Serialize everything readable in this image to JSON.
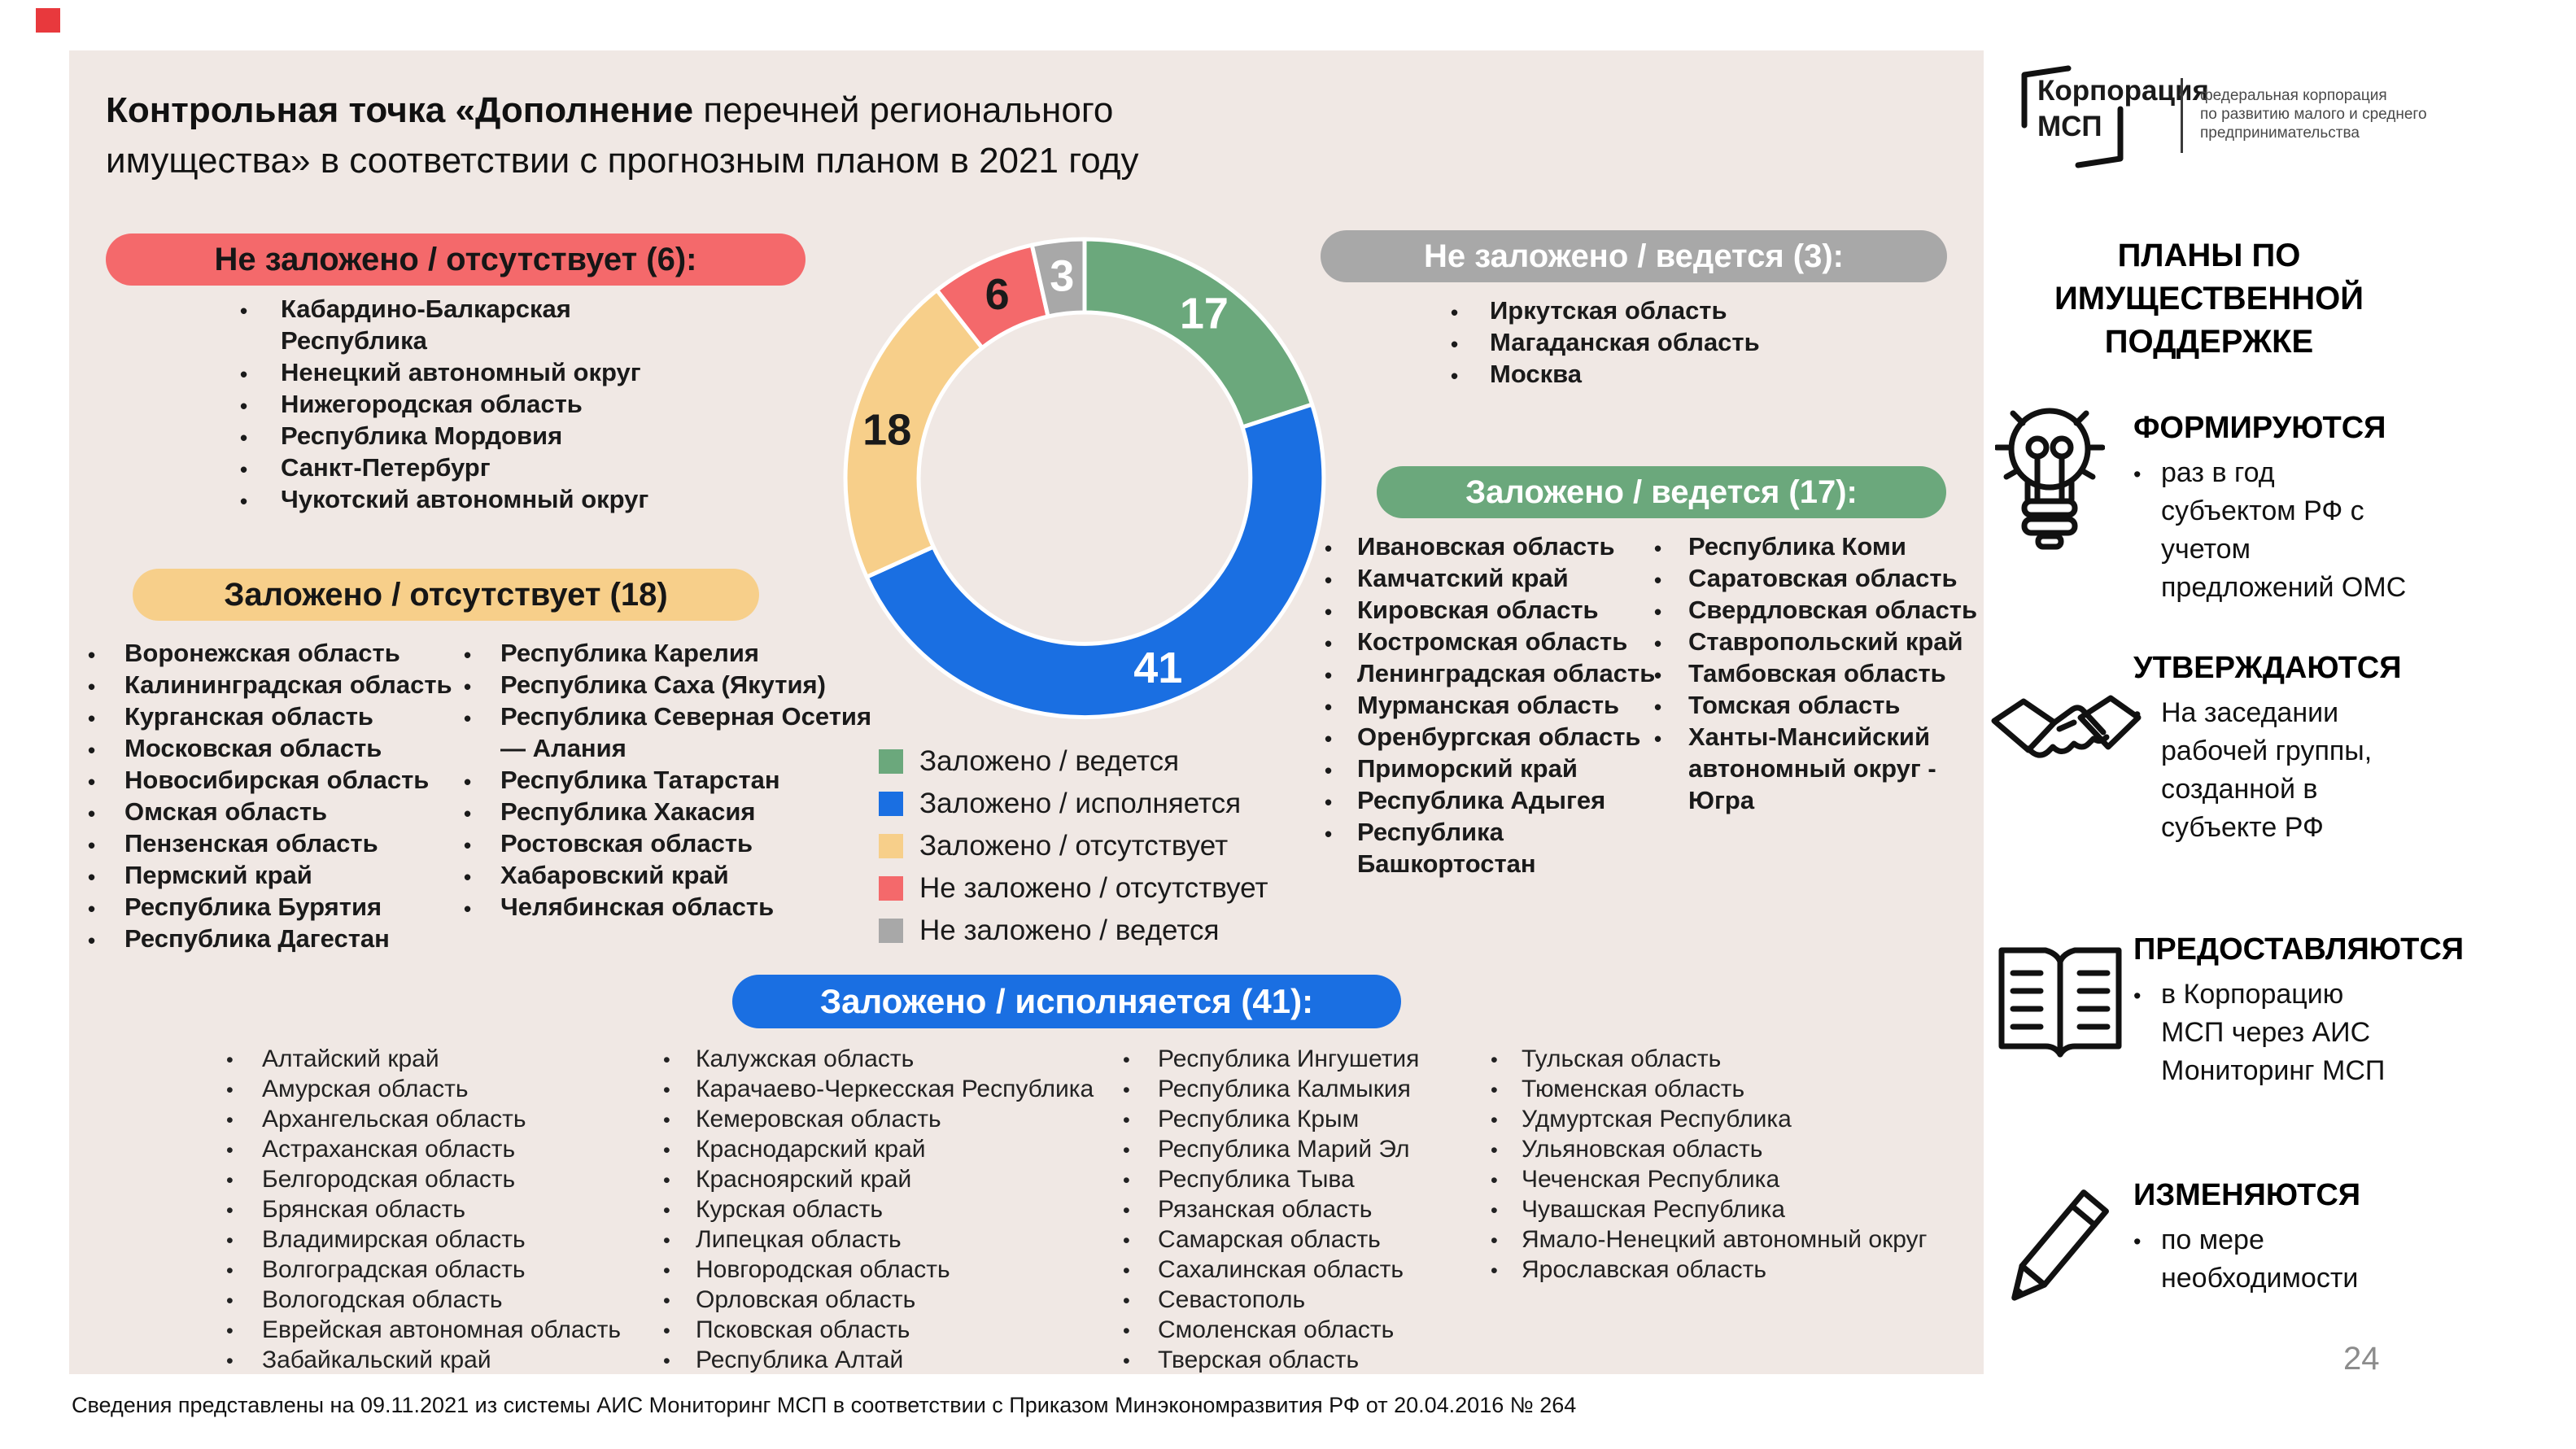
{
  "slide": {
    "title_bold": "Контрольная точка «Дополнение",
    "title_rest": " перечней регионального имущества» в соответствии с прогнозным планом в 2021 году",
    "footer": "Сведения представлены на 09.11.2021 из системы АИС Мониторинг МСП в соответствии с Приказом Минэкономразвития РФ от 20.04.2016 № 264",
    "page_number": "24"
  },
  "groups": {
    "not_planned_absent": {
      "label": "Не заложено / отсутствует (6):",
      "color": "#f4696b",
      "items": [
        "Кабардино-Балкарская Республика",
        "Ненецкий автономный округ",
        "Нижегородская область",
        "Республика Мордовия",
        "Санкт-Петербург",
        "Чукотский автономный округ"
      ]
    },
    "planned_absent": {
      "label": "Заложено / отсутствует (18)",
      "color": "#f7cf8a",
      "col1": [
        "Воронежская область",
        "Калининградская область",
        "Курганская область",
        "Московская область",
        "Новосибирская область",
        "Омская область",
        "Пензенская область",
        "Пермский край",
        "Республика Бурятия",
        "Республика Дагестан"
      ],
      "col2": [
        "Республика Карелия",
        "Республика Саха (Якутия)",
        "Республика Северная Осетия — Алания",
        "Республика Татарстан",
        "Республика Хакасия",
        "Ростовская область",
        "Хабаровский край",
        "Челябинская область"
      ]
    },
    "not_planned_ongoing": {
      "label": "Не заложено / ведется (3):",
      "color": "#a8a8a8",
      "items": [
        "Иркутская область",
        "Магаданская область",
        "Москва"
      ]
    },
    "planned_ongoing": {
      "label": "Заложено / ведется (17):",
      "color": "#6ba87c",
      "col1": [
        "Ивановская область",
        "Камчатский край",
        "Кировская область",
        "Костромская область",
        "Ленинградская область",
        "Мурманская область",
        "Оренбургская область",
        "Приморский край",
        "Республика Адыгея",
        "Республика Башкортостан"
      ],
      "col2": [
        "Республика Коми",
        "Саратовская область",
        "Свердловская область",
        "Ставропольский край",
        "Тамбовская область",
        "Томская область",
        "Ханты-Мансийский автономный округ - Югра"
      ]
    },
    "planned_executing": {
      "label": "Заложено / исполняется (41):",
      "color": "#1a6fe2",
      "col1": [
        "Алтайский край",
        "Амурская область",
        "Архангельская область",
        "Астраханская область",
        "Белгородская область",
        "Брянская область",
        "Владимирская область",
        "Волгоградская область",
        "Вологодская область",
        "Еврейская автономная область",
        "Забайкальский край"
      ],
      "col2": [
        "Калужская область",
        "Карачаево-Черкесская Республика",
        "Кемеровская область",
        "Краснодарский край",
        "Красноярский край",
        "Курская область",
        "Липецкая область",
        "Новгородская область",
        "Орловская область",
        "Псковская область",
        "Республика Алтай"
      ],
      "col3": [
        "Республика Ингушетия",
        "Республика Калмыкия",
        "Республика Крым",
        "Республика Марий Эл",
        "Республика Тыва",
        "Рязанская область",
        "Самарская область",
        "Сахалинская область",
        "Севастополь",
        "Смоленская область",
        "Тверская область"
      ],
      "col4": [
        "Тульская область",
        "Тюменская область",
        "Удмуртская Республика",
        "Ульяновская область",
        "Чеченская Республика",
        "Чувашская Республика",
        "Ямало-Ненецкий автономный округ",
        "Ярославская область"
      ]
    }
  },
  "chart_data": {
    "type": "pie",
    "subtype": "donut",
    "labels": [
      "Заложено / ведется",
      "Заложено / исполняется",
      "Заложено / отсутствует",
      "Не заложено / отсутствует",
      "Не заложено / ведется"
    ],
    "values": [
      17,
      41,
      18,
      6,
      3
    ],
    "colors": [
      "#6ba87c",
      "#1a6fe2",
      "#f7cf8a",
      "#f4696b",
      "#a8a8a8"
    ],
    "value_label_colors": [
      "#ffffff",
      "#ffffff",
      "#1a1a1a",
      "#1a1a1a",
      "#ffffff"
    ],
    "start_angle": "top",
    "direction": "clockwise",
    "legend_position": "bottom-left",
    "legend": [
      {
        "label": "Заложено / ведется",
        "color": "#6ba87c"
      },
      {
        "label": "Заложено / исполняется",
        "color": "#1a6fe2"
      },
      {
        "label": "Заложено / отсутствует",
        "color": "#f7cf8a"
      },
      {
        "label": "Не заложено / отсутствует",
        "color": "#f4696b"
      },
      {
        "label": "Не заложено / ведется",
        "color": "#a8a8a8"
      }
    ]
  },
  "logo": {
    "line1": "Корпорация",
    "line2": "МСП",
    "sub1": "федеральная корпорация",
    "sub2": "по развитию малого и среднего",
    "sub3": "предпринимательства"
  },
  "sidebar": {
    "heading": "ПЛАНЫ ПО ИМУЩЕСТВЕННОЙ ПОДДЕРЖКЕ",
    "sections": [
      {
        "heading": "ФОРМИРУЮТСЯ",
        "icon": "lightbulb-icon",
        "bullets": [
          "раз в год субъектом РФ с учетом предложений ОМС"
        ]
      },
      {
        "heading": "УТВЕРЖДАЮТСЯ",
        "icon": "handshake-icon",
        "bullets": [
          "На заседании рабочей группы, созданной в субъекте РФ"
        ]
      },
      {
        "heading": "ПРЕДОСТАВЛЯЮТСЯ",
        "icon": "open-book-icon",
        "bullets": [
          "в Корпорацию МСП через АИС Мониторинг МСП"
        ]
      },
      {
        "heading": "ИЗМЕНЯЮТСЯ",
        "icon": "pencil-icon",
        "bullets": [
          "по мере необходимости"
        ]
      }
    ]
  }
}
